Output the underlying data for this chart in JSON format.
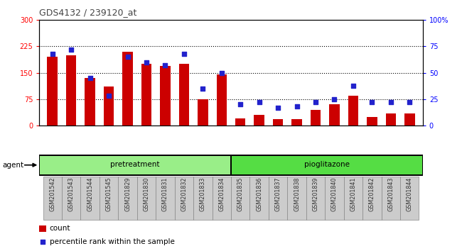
{
  "title": "GDS4132 / 239120_at",
  "categories": [
    "GSM201542",
    "GSM201543",
    "GSM201544",
    "GSM201545",
    "GSM201829",
    "GSM201830",
    "GSM201831",
    "GSM201832",
    "GSM201833",
    "GSM201834",
    "GSM201835",
    "GSM201836",
    "GSM201837",
    "GSM201838",
    "GSM201839",
    "GSM201840",
    "GSM201841",
    "GSM201842",
    "GSM201843",
    "GSM201844"
  ],
  "counts": [
    195,
    200,
    135,
    110,
    210,
    175,
    170,
    175,
    75,
    145,
    20,
    30,
    18,
    18,
    45,
    60,
    85,
    25,
    35,
    35
  ],
  "percentiles": [
    68,
    72,
    45,
    28,
    65,
    60,
    57,
    68,
    35,
    50,
    20,
    22,
    17,
    18,
    22,
    25,
    38,
    22,
    22,
    22
  ],
  "pretreatment_count": 10,
  "pioglitazone_count": 10,
  "left_ylim": [
    0,
    300
  ],
  "right_ylim": [
    0,
    100
  ],
  "left_yticks": [
    0,
    75,
    150,
    225,
    300
  ],
  "right_yticks": [
    0,
    25,
    50,
    75,
    100
  ],
  "right_ytick_labels": [
    "0",
    "25",
    "50",
    "75",
    "100%"
  ],
  "bar_color": "#cc0000",
  "dot_color": "#2222cc",
  "pretreatment_color": "#99ee88",
  "pioglitazone_color": "#55dd44",
  "band_border_color": "#000000",
  "title_color": "#444444",
  "bar_width": 0.55,
  "dot_size": 22,
  "grid_linestyle": ":",
  "grid_color": "#000000",
  "bg_plot": "#ffffff",
  "bg_xtick": "#cccccc",
  "spine_color": "#000000"
}
